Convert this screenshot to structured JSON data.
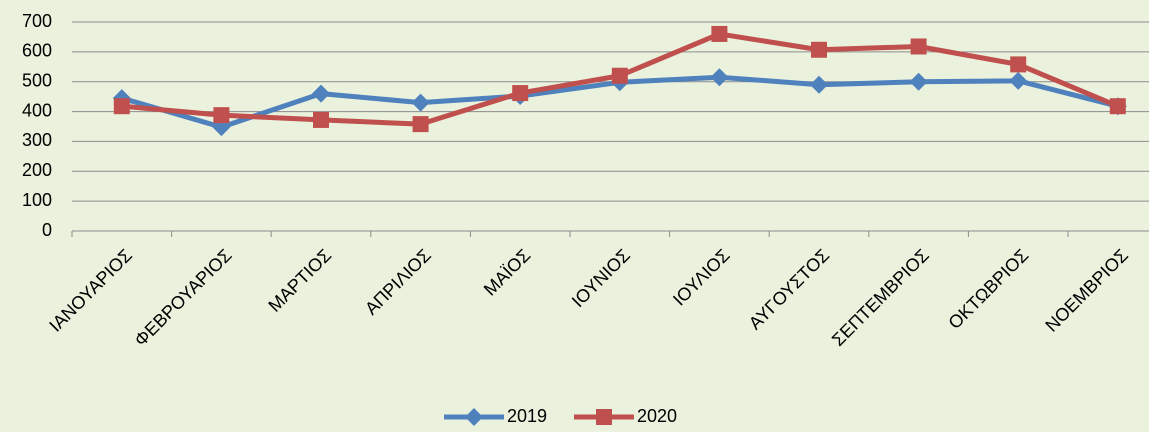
{
  "chart_data": {
    "type": "line",
    "categories": [
      "ΙΑΝΟΥΑΡΙΟΣ",
      "ΦΕΒΡΟΥΑΡΙΟΣ",
      "ΜΑΡΤΙΟΣ",
      "ΑΠΡΙΛΙΟΣ",
      "ΜΑΪΟΣ",
      "ΙΟΥΝΙΟΣ",
      "ΙΟΥΛΙΟΣ",
      "ΑΥΓΟΥΣΤΟΣ",
      "ΣΕΠΤΕΜΒΡΙΟΣ",
      "ΟΚΤΩΒΡΙΟΣ",
      "ΝΟΕΜΒΡΙΟΣ"
    ],
    "series": [
      {
        "name": "2019",
        "color": "#4f81bd",
        "marker": "diamond",
        "values": [
          445,
          348,
          460,
          430,
          452,
          498,
          515,
          490,
          500,
          503,
          418
        ]
      },
      {
        "name": "2020",
        "color": "#c0504d",
        "marker": "square",
        "values": [
          418,
          388,
          372,
          358,
          462,
          520,
          660,
          607,
          618,
          558,
          418
        ]
      }
    ],
    "ylim": [
      0,
      700
    ],
    "yticks": [
      0,
      100,
      200,
      300,
      400,
      500,
      600,
      700
    ],
    "grid": true,
    "legend": "bottom"
  }
}
